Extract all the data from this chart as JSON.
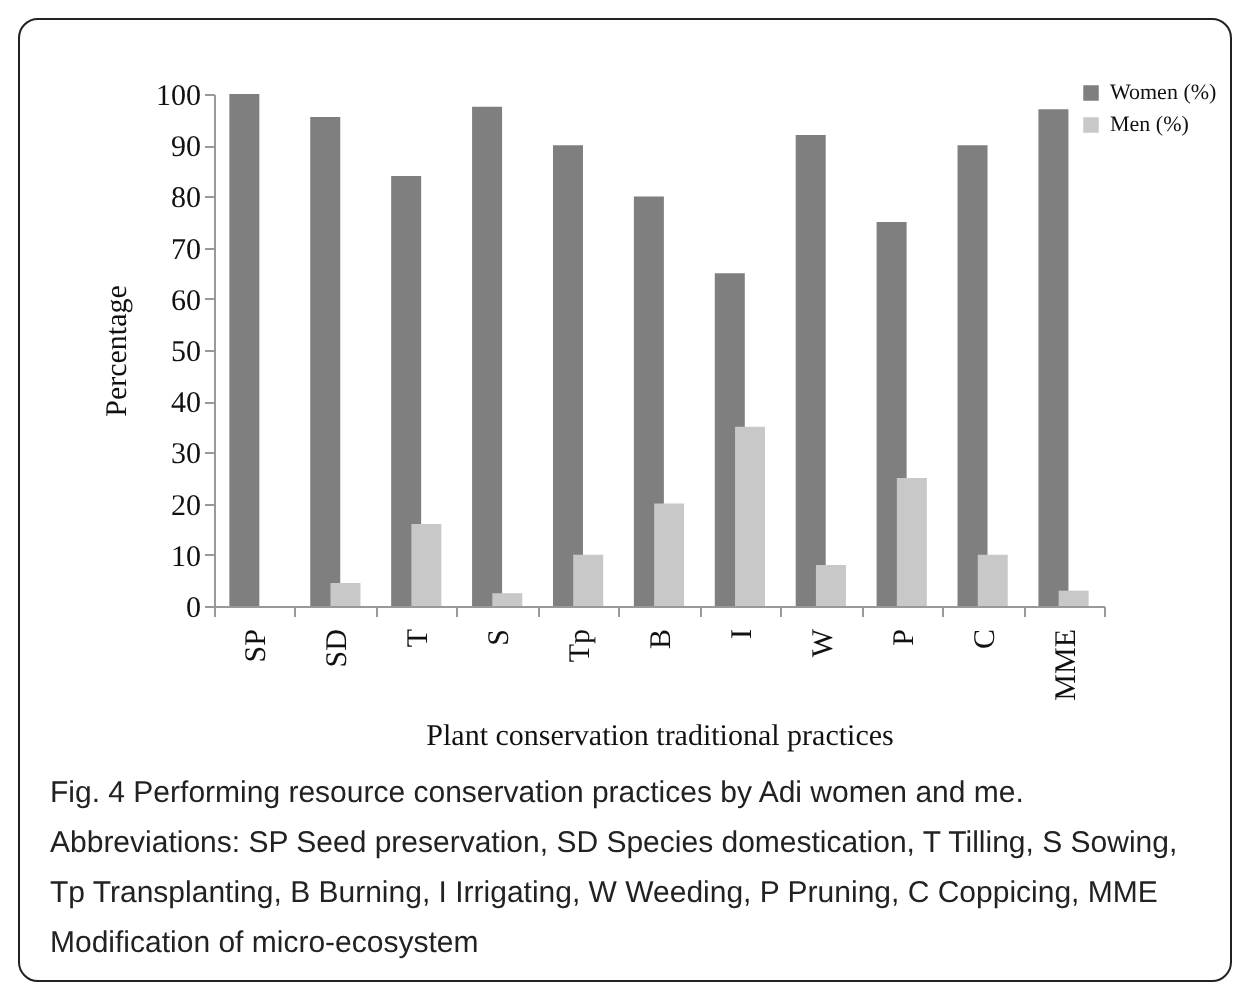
{
  "chart_data": {
    "type": "bar",
    "xlabel": "Plant conservation traditional practices",
    "ylabel": "Percentage",
    "categories": [
      "SP",
      "SD",
      "T",
      "S",
      "Tp",
      "B",
      "I",
      "W",
      "P",
      "C",
      "MME"
    ],
    "series": [
      {
        "name": "Women (%)",
        "color": "#7f7f7f",
        "values": [
          100,
          95.5,
          84,
          97.5,
          90,
          80,
          65,
          92,
          75,
          90,
          97
        ]
      },
      {
        "name": "Men (%)",
        "color": "#c8c8c8",
        "values": [
          0,
          4.5,
          16,
          2.5,
          10,
          20,
          35,
          8,
          25,
          10,
          3
        ]
      }
    ],
    "ylim": [
      0,
      100
    ],
    "yticks": [
      0,
      10,
      20,
      30,
      40,
      50,
      60,
      70,
      80,
      90,
      100
    ],
    "grid": false,
    "legend": "top right",
    "annotations": [
      "Fig. 4 Performing resource conservation practices by Adi women and me. Abbreviations: SP Seed preservation, SD Species domestication, T Tilling, S Sowing, Tp Transplanting, B Burning, I Irrigating, W Weeding, P Pruning, C Coppicing, MME Modification of micro-ecosystem"
    ]
  }
}
